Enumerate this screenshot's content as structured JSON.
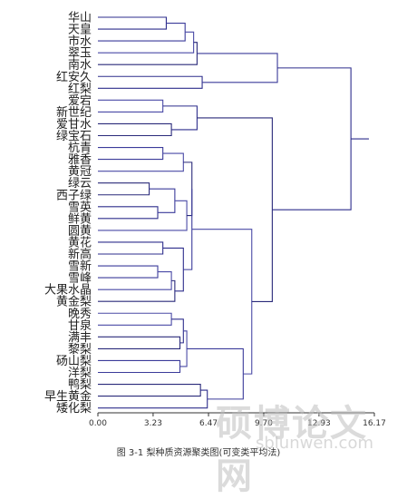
{
  "chart_data": {
    "type": "dendrogram",
    "title": "",
    "xlabel": "",
    "ylabel": "",
    "xlim": [
      0,
      16.17
    ],
    "xticks": [
      "0.00",
      "3.23",
      "6.47",
      "9.70",
      "12.93",
      "16.17"
    ],
    "leaves": [
      "华山",
      "天皇",
      "市水",
      "翠玉",
      "南水",
      "红安久",
      "红梨",
      "爱宕",
      "新世纪",
      "爱甘水",
      "绿宝石",
      "杭青",
      "雅香",
      "黄冠",
      "绿云",
      "西子绿",
      "雪英",
      "鲜黄",
      "圆黄",
      "黄花",
      "新高",
      "雪新",
      "雪峰",
      "大果水晶",
      "黄金梨",
      "晚秀",
      "甘泉",
      "满丰",
      "黎梨",
      "砀山梨",
      "洋梨",
      "鸭梨",
      "早生黄金",
      "矮化梨"
    ],
    "merges": [
      [
        0,
        1,
        4.0
      ],
      [
        34,
        2,
        5.1
      ],
      [
        35,
        3,
        5.6
      ],
      [
        36,
        4,
        5.8
      ],
      [
        5,
        6,
        6.1
      ],
      [
        37,
        38,
        10.5
      ],
      [
        7,
        8,
        3.8
      ],
      [
        9,
        10,
        4.3
      ],
      [
        40,
        41,
        5.8
      ],
      [
        11,
        12,
        3.8
      ],
      [
        43,
        13,
        5.0
      ],
      [
        14,
        15,
        3.0
      ],
      [
        16,
        17,
        3.5
      ],
      [
        45,
        46,
        4.5
      ],
      [
        47,
        18,
        5.2
      ],
      [
        44,
        48,
        5.5
      ],
      [
        19,
        20,
        3.8
      ],
      [
        21,
        22,
        3.5
      ],
      [
        51,
        23,
        4.3
      ],
      [
        52,
        24,
        4.5
      ],
      [
        50,
        53,
        5.0
      ],
      [
        49,
        54,
        5.5
      ],
      [
        25,
        26,
        4.3
      ],
      [
        27,
        28,
        4.8
      ],
      [
        56,
        57,
        5.0
      ],
      [
        29,
        30,
        4.8
      ],
      [
        58,
        59,
        5.2
      ],
      [
        31,
        32,
        6.0
      ],
      [
        61,
        33,
        6.4
      ],
      [
        60,
        62,
        8.5
      ],
      [
        55,
        63,
        9.0
      ],
      [
        42,
        64,
        10.2
      ],
      [
        39,
        65,
        14.8
      ]
    ]
  },
  "caption": "图 3-1  梨种质资源聚类图(可变类平均法)",
  "watermark": {
    "title": "硕博论文网",
    "url": "sblunwen.com"
  }
}
